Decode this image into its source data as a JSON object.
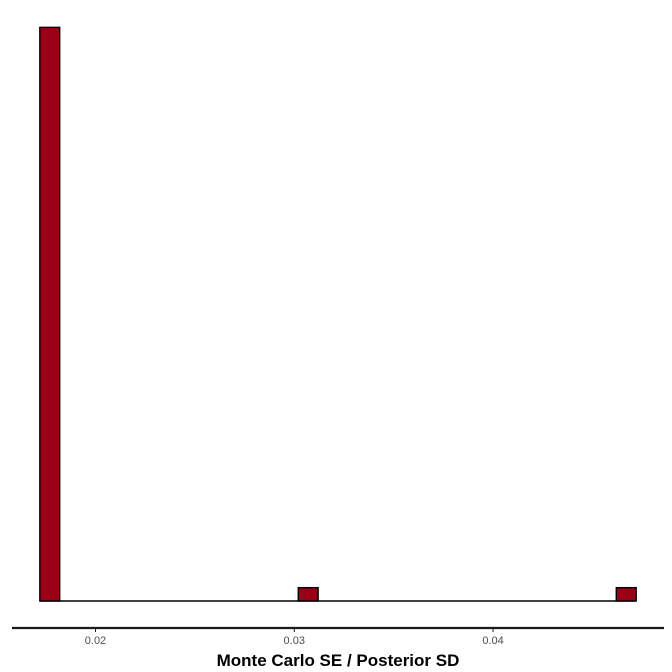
{
  "chart_data": {
    "type": "bar",
    "title": "",
    "xlabel": "Monte Carlo SE / Posterior SD",
    "ylabel": "",
    "xlim": [
      0.0158,
      0.0486
    ],
    "ylim": [
      0,
      44.9
    ],
    "x_ticks": [
      0.02,
      0.03,
      0.04
    ],
    "x_tick_labels": [
      "0.02",
      "0.03",
      "0.04"
    ],
    "bin_width": 0.001,
    "bins": [
      {
        "x": 0.0177,
        "count": 43
      },
      {
        "x": 0.0307,
        "count": 1
      },
      {
        "x": 0.0467,
        "count": 1
      }
    ],
    "grid": false,
    "legend": "none",
    "colors": {
      "fill": "#990018",
      "outline": "#000000",
      "axis": "#1a1a1a"
    }
  }
}
